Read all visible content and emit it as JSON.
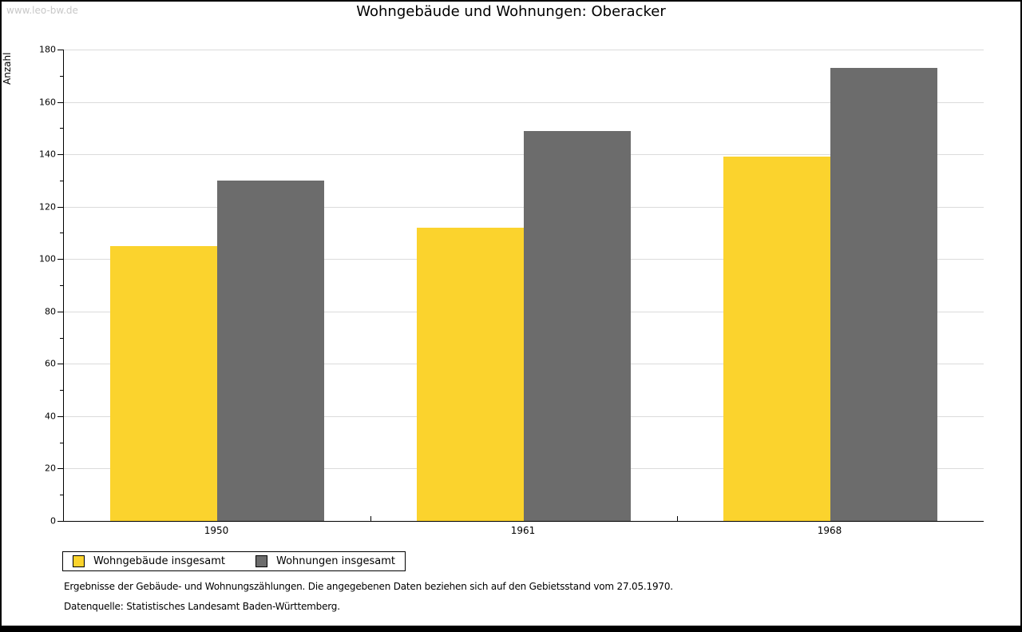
{
  "watermark": "www.leo-bw.de",
  "title": "Wohngebäude und Wohnungen: Oberacker",
  "chart_data": {
    "type": "bar",
    "title": "Wohngebäude und Wohnungen: Oberacker",
    "categories": [
      "1950",
      "1961",
      "1968"
    ],
    "series": [
      {
        "name": "Wohngebäude insgesamt",
        "slug": "wohngebaeude",
        "color": "#FBD32D",
        "values": [
          105,
          112,
          139
        ]
      },
      {
        "name": "Wohnungen insgesamt",
        "slug": "wohnungen",
        "color": "#6C6C6C",
        "values": [
          130,
          149,
          173
        ]
      }
    ],
    "xlabel": "",
    "ylabel": "Anzahl",
    "ylim": [
      0,
      180
    ],
    "ytick_step": 20,
    "yminor_step": 10,
    "grid": "horizontal",
    "legend_position": "bottom-left"
  },
  "footnotes": {
    "line1": "Ergebnisse der Gebäude- und Wohnungszählungen. Die angegebenen Daten beziehen sich auf den Gebietsstand vom 27.05.1970.",
    "line2": "Datenquelle: Statistisches Landesamt Baden-Württemberg."
  },
  "colors": {
    "grid": "#DBDBDB",
    "axis": "#000000",
    "watermark": "#C8C8C8",
    "border": "#000000",
    "background": "#FFFFFF"
  }
}
